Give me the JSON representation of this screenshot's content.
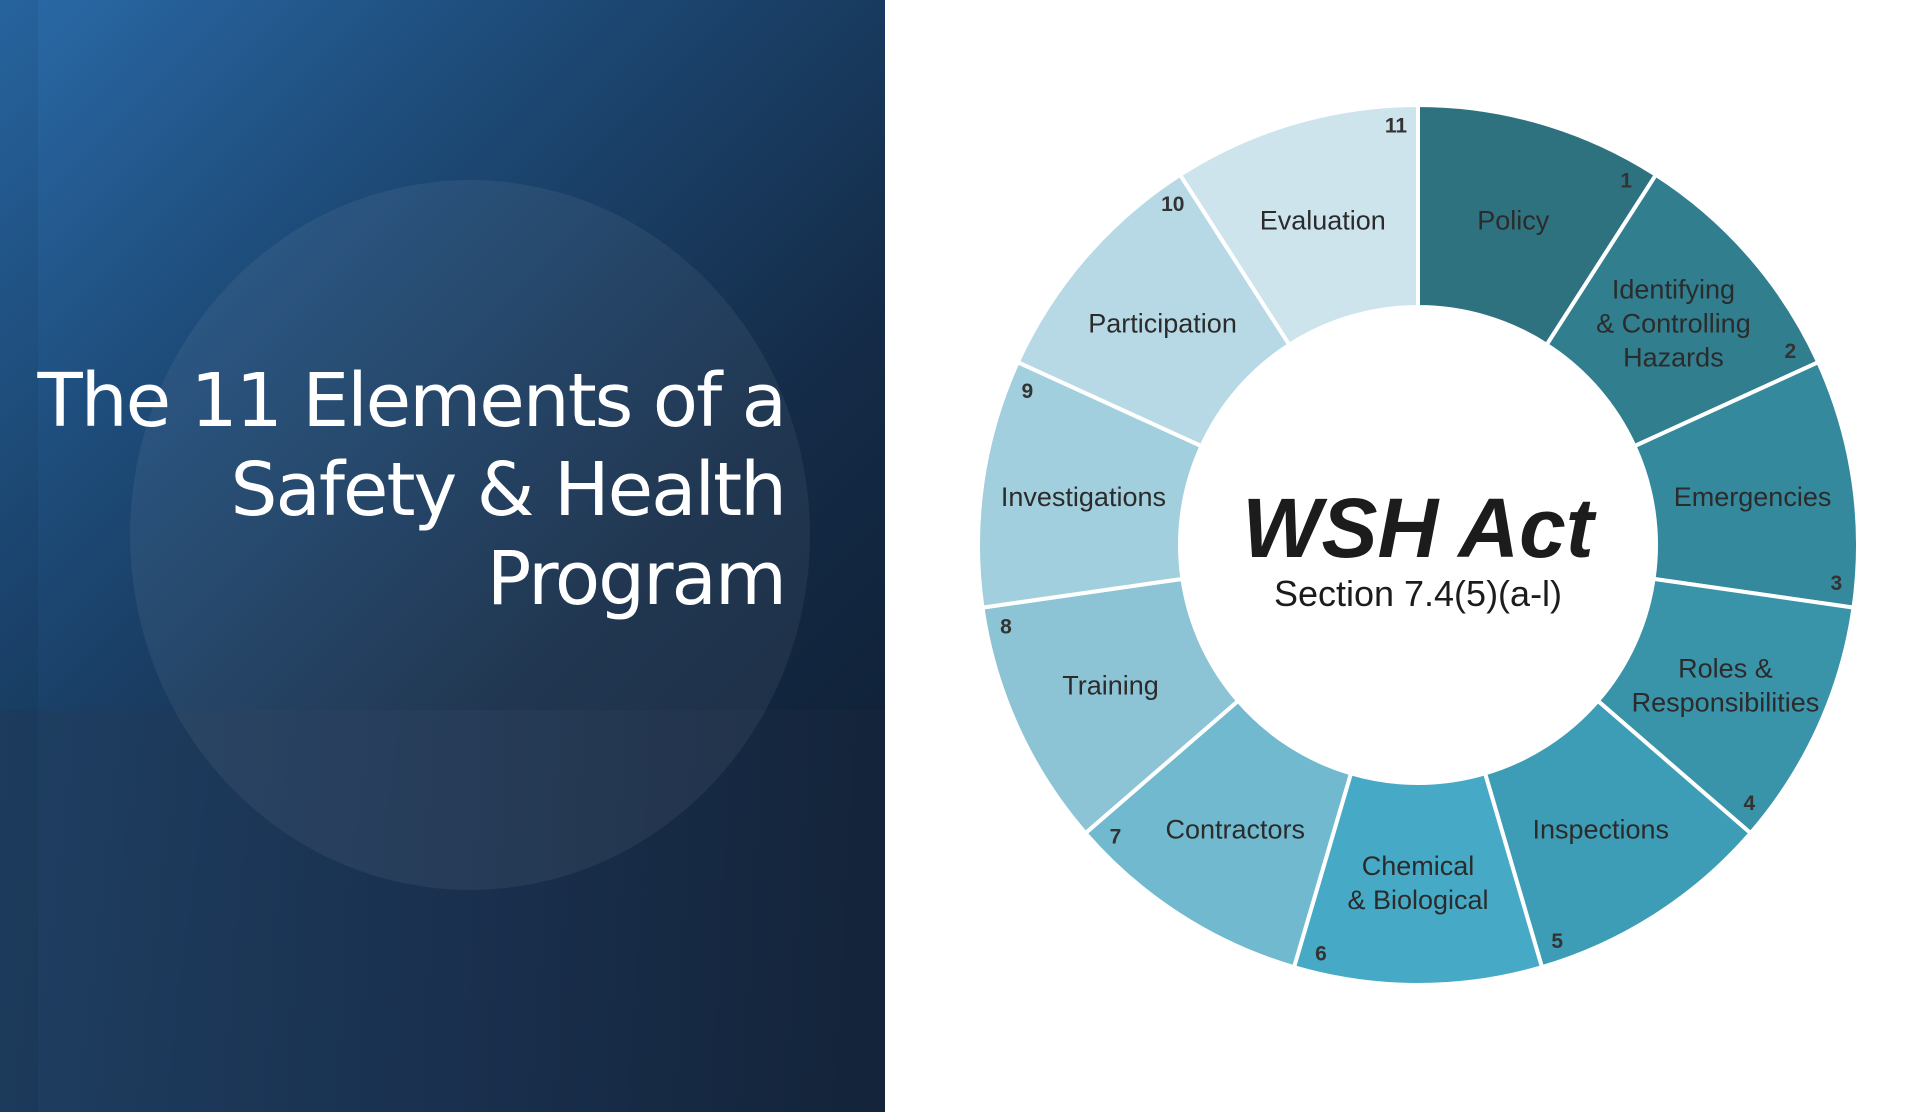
{
  "slide": {
    "title_lines": [
      "The 11 Elements of a",
      "Safety & Health",
      "Program"
    ]
  },
  "wheel": {
    "center_title": "WSH Act",
    "center_subtitle": "Section 7.4(5)(a-l)",
    "segments": [
      {
        "number": "1",
        "lines": [
          "Policy"
        ],
        "color": "#2f727f"
      },
      {
        "number": "2",
        "lines": [
          "Identifying",
          "& Controlling",
          "Hazards"
        ],
        "color": "#317e8f"
      },
      {
        "number": "3",
        "lines": [
          "Emergencies"
        ],
        "color": "#35899c"
      },
      {
        "number": "4",
        "lines": [
          "Roles &",
          "Responsibilities"
        ],
        "color": "#3993a9"
      },
      {
        "number": "5",
        "lines": [
          "Inspections"
        ],
        "color": "#3e9db6"
      },
      {
        "number": "6",
        "lines": [
          "Chemical",
          "& Biological"
        ],
        "color": "#46aac6"
      },
      {
        "number": "7",
        "lines": [
          "Contractors"
        ],
        "color": "#71b9cf"
      },
      {
        "number": "8",
        "lines": [
          "Training"
        ],
        "color": "#8cc4d6"
      },
      {
        "number": "9",
        "lines": [
          "Investigations"
        ],
        "color": "#a2cfdd"
      },
      {
        "number": "10",
        "lines": [
          "Participation"
        ],
        "color": "#b7d9e5"
      },
      {
        "number": "11",
        "lines": [
          "Evaluation"
        ],
        "color": "#cde4ed"
      }
    ]
  }
}
